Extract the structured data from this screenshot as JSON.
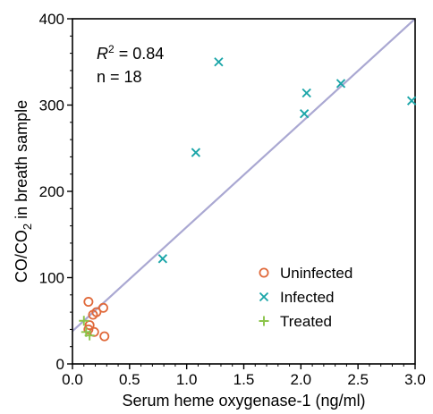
{
  "chart_data": {
    "type": "scatter",
    "xlabel": "Serum heme oxygenase-1 (ng/ml)",
    "ylabel": {
      "prefix": "CO/CO",
      "subscript": "2",
      "suffix": " in breath sample"
    },
    "xlim": [
      0.0,
      3.0
    ],
    "ylim": [
      0,
      400
    ],
    "x_ticks": [
      "0.0",
      "0.5",
      "1.0",
      "1.5",
      "2.0",
      "2.5",
      "3.0"
    ],
    "y_ticks": [
      "0",
      "100",
      "200",
      "300",
      "400"
    ],
    "grid": false,
    "legend_position": "bottom-right",
    "annotations": {
      "r2_symbol": "R",
      "r2_exp": "2",
      "r2_value": " = 0.84",
      "n_text": "n = 18"
    },
    "series": [
      {
        "name": "Uninfected",
        "marker": "circle-open",
        "color": "#e0693a",
        "points": [
          [
            0.14,
            72
          ],
          [
            0.18,
            57
          ],
          [
            0.21,
            60
          ],
          [
            0.27,
            65
          ],
          [
            0.15,
            45
          ],
          [
            0.14,
            40
          ],
          [
            0.19,
            37
          ],
          [
            0.28,
            32
          ]
        ]
      },
      {
        "name": "Infected",
        "marker": "x",
        "color": "#1aa5a8",
        "points": [
          [
            0.79,
            122
          ],
          [
            1.08,
            245
          ],
          [
            1.28,
            350
          ],
          [
            2.03,
            290
          ],
          [
            2.05,
            314
          ],
          [
            2.35,
            325
          ],
          [
            2.97,
            305
          ]
        ]
      },
      {
        "name": "Treated",
        "marker": "plus",
        "color": "#8bc44a",
        "points": [
          [
            0.1,
            50
          ],
          [
            0.12,
            37
          ],
          [
            0.15,
            33
          ]
        ]
      }
    ],
    "fit_line": {
      "x": [
        0.0,
        3.0
      ],
      "y": [
        38,
        400
      ],
      "color": "#aaa8d2"
    }
  }
}
